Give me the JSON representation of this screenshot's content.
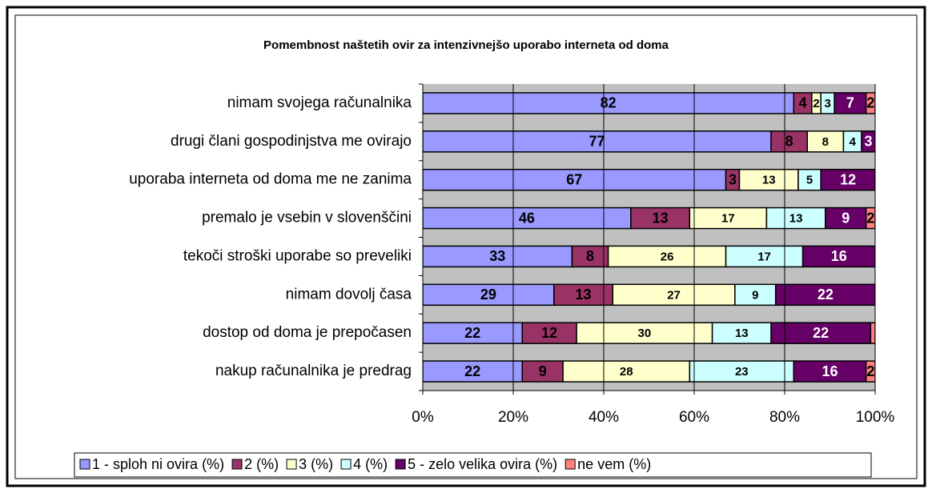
{
  "chart_data": {
    "type": "stacked_barh",
    "title": "Pomembnost naštetih ovir za intenzivnejšo uporabo interneta od doma",
    "categories": [
      "nimam svojega računalnika",
      "drugi člani gospodinjstva me ovirajo",
      "uporaba interneta od doma me ne zanima",
      "premalo je vsebin v slovenščini",
      "tekoči stroški uporabe so preveliki",
      "nimam dovolj časa",
      "dostop od doma je prepočasen",
      "nakup računalnika je predrag"
    ],
    "series": [
      {
        "name": "1 - sploh ni ovira (%)",
        "color": "#9999ff",
        "values": [
          82,
          77,
          67,
          46,
          33,
          29,
          22,
          22
        ]
      },
      {
        "name": "2 (%)",
        "color": "#993366",
        "values": [
          4,
          8,
          3,
          13,
          8,
          13,
          12,
          9
        ]
      },
      {
        "name": "3 (%)",
        "color": "#ffffcc",
        "values": [
          2,
          8,
          13,
          17,
          26,
          27,
          30,
          28
        ]
      },
      {
        "name": "4 (%)",
        "color": "#ccffff",
        "values": [
          3,
          4,
          5,
          13,
          17,
          9,
          13,
          23
        ]
      },
      {
        "name": "5 - zelo velika ovira (%)",
        "color": "#660066",
        "values": [
          7,
          3,
          12,
          9,
          16,
          22,
          22,
          16
        ]
      },
      {
        "name": "ne vem (%)",
        "color": "#ff8080",
        "values": [
          2,
          null,
          1,
          2,
          null,
          null,
          1,
          2
        ],
        "value_labels": [
          "2",
          null,
          "1",
          "2",
          null,
          null,
          null,
          "2"
        ]
      }
    ],
    "xlim": [
      0,
      100
    ],
    "xticks": [
      {
        "value": 0,
        "label": "0%"
      },
      {
        "value": 20,
        "label": "20%"
      },
      {
        "value": 40,
        "label": "40%"
      },
      {
        "value": 60,
        "label": "60%"
      },
      {
        "value": 80,
        "label": "80%"
      },
      {
        "value": 100,
        "label": "100%"
      }
    ],
    "grid": true,
    "legend": "bottom"
  }
}
